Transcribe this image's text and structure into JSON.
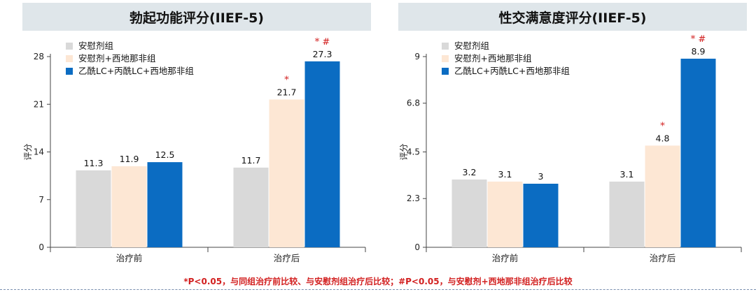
{
  "colors": {
    "placebo": "#d9d9d9",
    "sildenafil": "#fde7d4",
    "combo": "#0b6cc2",
    "mark": "#d21f1f"
  },
  "footnote": "*P<0.05，与同组治疗前比较、与安慰剂组治疗后比较；#P<0.05，与安慰剂+西地那非组治疗后比较",
  "chart_data": [
    {
      "type": "bar",
      "title": "勃起功能评分(IIEF-5)",
      "ylabel": "评分",
      "ylim": [
        0,
        28
      ],
      "yticks": [
        "0",
        "7",
        "14",
        "21",
        "28"
      ],
      "categories": [
        "治疗前",
        "治疗后"
      ],
      "series": [
        {
          "name": "安慰剂组",
          "values": [
            11.3,
            11.7
          ],
          "labels": [
            "11.3",
            "11.7"
          ],
          "marks": [
            "",
            ""
          ]
        },
        {
          "name": "安慰剂+西地那非组",
          "values": [
            11.9,
            21.7
          ],
          "labels": [
            "11.9",
            "21.7"
          ],
          "marks": [
            "",
            "*"
          ]
        },
        {
          "name": "乙酰LC+丙酰LC+西地那非组",
          "values": [
            12.5,
            27.3
          ],
          "labels": [
            "12.5",
            "27.3"
          ],
          "marks": [
            "",
            "* #"
          ]
        }
      ],
      "legend_position": "top-left",
      "grid": false
    },
    {
      "type": "bar",
      "title": "性交满意度评分(IIEF-5)",
      "ylabel": "评分",
      "ylim": [
        0,
        9
      ],
      "yticks": [
        "0",
        "2.3",
        "4.5",
        "6.8",
        "9"
      ],
      "categories": [
        "治疗前",
        "治疗后"
      ],
      "series": [
        {
          "name": "安慰剂组",
          "values": [
            3.2,
            3.1
          ],
          "labels": [
            "3.2",
            "3.1"
          ],
          "marks": [
            "",
            ""
          ]
        },
        {
          "name": "安慰剂+西地那非组",
          "values": [
            3.1,
            4.8
          ],
          "labels": [
            "3.1",
            "4.8"
          ],
          "marks": [
            "",
            "*"
          ]
        },
        {
          "name": "乙酰LC+丙酰LC+西地那非组",
          "values": [
            3.0,
            8.9
          ],
          "labels": [
            "3",
            "8.9"
          ],
          "marks": [
            "",
            "* #"
          ]
        }
      ],
      "legend_position": "top-left",
      "grid": false
    }
  ]
}
